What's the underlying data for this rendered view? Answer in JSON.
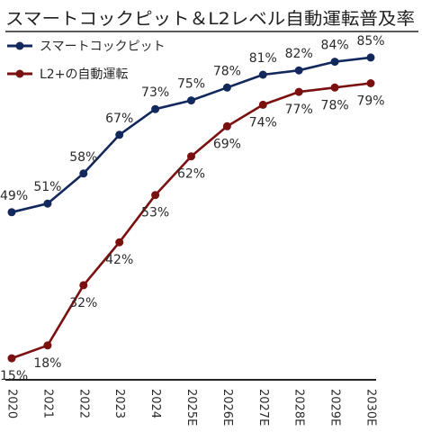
{
  "chart_data": {
    "type": "line",
    "title": "スマートコックピット＆L2レベル自動運転普及率",
    "xlabel": "",
    "ylabel": "",
    "categories": [
      "2020",
      "2021",
      "2022",
      "2023",
      "2024",
      "2025E",
      "2026E",
      "2027E",
      "2028E",
      "2029E",
      "2030E"
    ],
    "ylim": [
      10,
      90
    ],
    "grid": false,
    "legend_position": "top-left",
    "series": [
      {
        "name": "スマートコックピット",
        "color": "#13295e",
        "values": [
          49,
          51,
          58,
          67,
          73,
          75,
          78,
          81,
          82,
          84,
          85
        ],
        "labels": [
          "49%",
          "51%",
          "58%",
          "67%",
          "73%",
          "75%",
          "78%",
          "81%",
          "82%",
          "84%",
          "85%"
        ]
      },
      {
        "name": "L2+の自動運転",
        "color": "#7a1010",
        "values": [
          15,
          18,
          32,
          42,
          53,
          62,
          69,
          74,
          77,
          78,
          79
        ],
        "labels": [
          "15%",
          "18%",
          "32%",
          "42%",
          "53%",
          "62%",
          "69%",
          "74%",
          "77%",
          "78%",
          "79%"
        ]
      }
    ]
  }
}
